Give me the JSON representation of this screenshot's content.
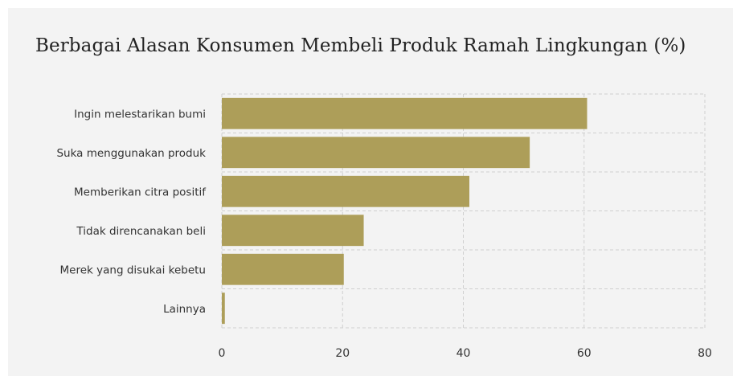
{
  "chart_data": {
    "type": "bar",
    "orientation": "horizontal",
    "title": "Berbagai Alasan Konsumen Membeli Produk Ramah Lingkungan (%)",
    "xlabel": "",
    "ylabel": "",
    "categories": [
      "Ingin melestarikan bumi",
      "Suka menggunakan produk",
      "Memberikan citra positif",
      "Tidak direncanakan beli",
      "Merek yang disukai kebetu",
      "Lainnya"
    ],
    "values": [
      60.5,
      51,
      41,
      23.5,
      20.2,
      0.5
    ],
    "xlim": [
      0,
      80
    ],
    "xticks": [
      "0",
      "20",
      "40",
      "60",
      "80"
    ],
    "grid": true,
    "legend": "none",
    "bar_color": "#ad9e59",
    "grid_color": "#cfcfcf",
    "background_color": "#f3f3f3"
  }
}
